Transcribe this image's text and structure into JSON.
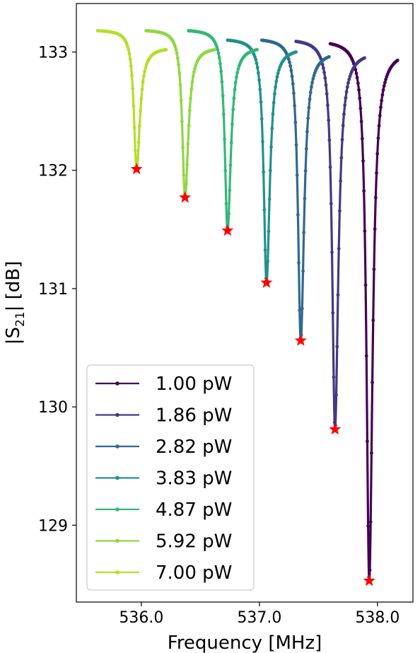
{
  "chart_data": {
    "type": "line",
    "xlabel": "Frequency [MHz]",
    "ylabel_main": "|S",
    "ylabel_sub": "21",
    "ylabel_tail": "| [dB]",
    "xlim": [
      535.45,
      538.3
    ],
    "ylim": [
      128.35,
      133.41
    ],
    "xticks": [
      536.0,
      537.0,
      538.0
    ],
    "xtick_labels": [
      "536.0",
      "537.0",
      "538.0"
    ],
    "yticks": [
      129,
      130,
      131,
      132,
      133
    ],
    "ytick_labels": [
      "129",
      "130",
      "131",
      "132",
      "133"
    ],
    "grid": false,
    "legend_position": "lower-left",
    "marker_color": "#ff0000",
    "series": [
      {
        "name": "1.00 pW",
        "color": "#440154",
        "x_start": 537.6,
        "x_end": 538.17,
        "x_min": 537.93,
        "y_start": 133.07,
        "y_min": 128.53,
        "y_end": 132.93
      },
      {
        "name": "1.86 pW",
        "color": "#443983",
        "x_start": 537.31,
        "x_end": 537.89,
        "x_min": 537.64,
        "y_start": 133.09,
        "y_min": 129.81,
        "y_end": 132.95
      },
      {
        "name": "2.82 pW",
        "color": "#31688e",
        "x_start": 537.02,
        "x_end": 537.59,
        "x_min": 537.35,
        "y_start": 133.1,
        "y_min": 130.56,
        "y_end": 132.96
      },
      {
        "name": "3.83 pW",
        "color": "#21918c",
        "x_start": 536.73,
        "x_end": 537.31,
        "x_min": 537.06,
        "y_start": 133.1,
        "y_min": 131.05,
        "y_end": 133.0
      },
      {
        "name": "4.87 pW",
        "color": "#35b779",
        "x_start": 536.4,
        "x_end": 536.98,
        "x_min": 536.73,
        "y_start": 133.18,
        "y_min": 131.49,
        "y_end": 133.02
      },
      {
        "name": "5.92 pW",
        "color": "#90d743",
        "x_start": 536.04,
        "x_end": 536.62,
        "x_min": 536.37,
        "y_start": 133.18,
        "y_min": 131.77,
        "y_end": 133.02
      },
      {
        "name": "7.00 pW",
        "color": "#b5de2b",
        "x_start": 535.63,
        "x_end": 536.21,
        "x_min": 535.96,
        "y_start": 133.18,
        "y_min": 132.01,
        "y_end": 133.02
      }
    ]
  }
}
